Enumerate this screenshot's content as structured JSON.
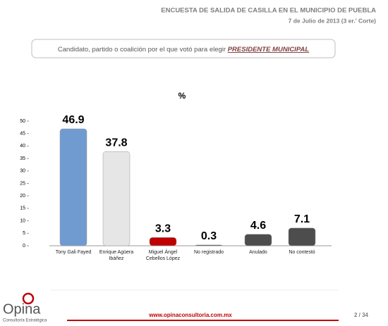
{
  "header": {
    "title": "ENCUESTA DE SALIDA DE CASILLA EN EL MUNICIPIO DE PUEBLA",
    "subtitle": "7 de Julio de 2013 (3 er.' Corte)"
  },
  "question": {
    "text": "Candidato, partido o coalición por el que votó para elegir ",
    "emphasis": "PRESIDENTE MUNICIPAL"
  },
  "chart_data": {
    "type": "bar",
    "title": "%",
    "categories": [
      "Tony Gali Fayed",
      "Enrique Agüera Ibáñez",
      "Miguel Ángel Cebellos López",
      "No registrado",
      "Anulado",
      "No contestó"
    ],
    "values": [
      46.9,
      37.8,
      3.3,
      0.3,
      4.6,
      7.1
    ],
    "colors": [
      "#6f9bd1",
      "#e6e6e6",
      "#c00000",
      "#4d4d4d",
      "#4d4d4d",
      "#4d4d4d"
    ],
    "ylim": [
      0,
      50
    ],
    "yticks": [
      0,
      5,
      10,
      15,
      20,
      25,
      30,
      35,
      40,
      45,
      50
    ],
    "grid": false
  },
  "footer": {
    "brand": "Opina",
    "tagline": "Consultoría Estratégica",
    "url": "www.opinaconsultoria.com.mx",
    "page": "2 / 34"
  }
}
